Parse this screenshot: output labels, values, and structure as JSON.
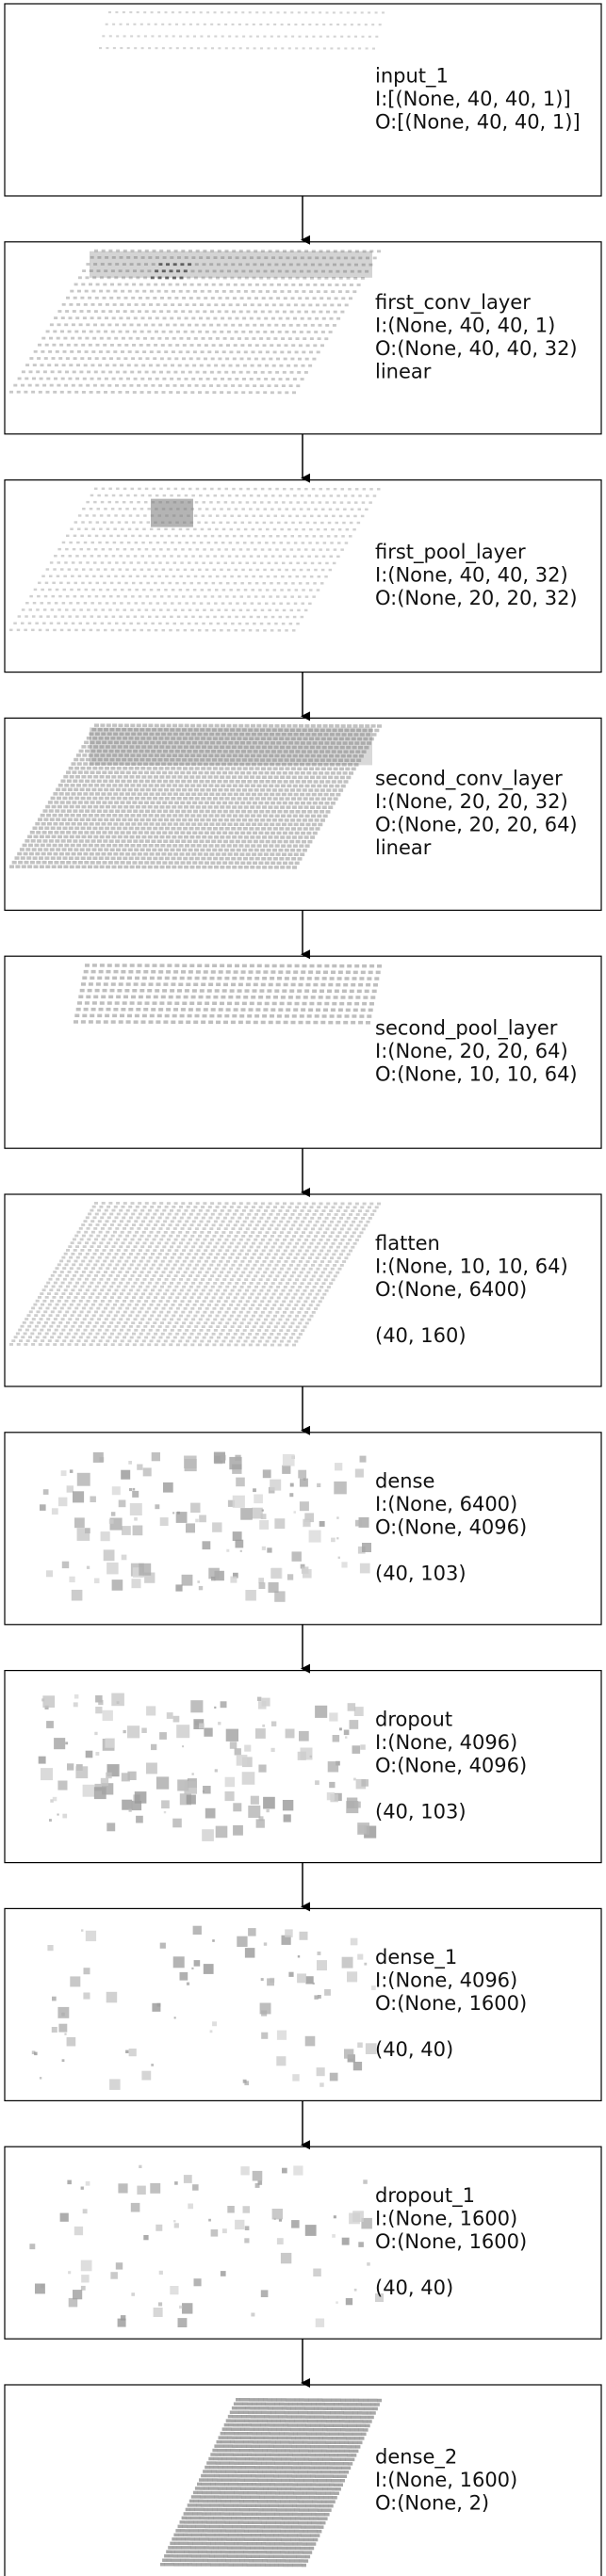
{
  "layers": [
    {
      "name": "input_1",
      "input": "I:[(None, 40, 40, 1)]",
      "output": "O:[(None, 40, 40, 1)]",
      "extra": "",
      "viz": "grid-sparse"
    },
    {
      "name": "first_conv_layer",
      "input": "I:(None, 40, 40, 1)",
      "output": "O:(None, 40, 40, 32)",
      "extra": "linear",
      "viz": "grid-conv"
    },
    {
      "name": "first_pool_layer",
      "input": "I:(None, 40, 40, 32)",
      "output": "O:(None, 20, 20, 32)",
      "extra": "",
      "viz": "grid-pool"
    },
    {
      "name": "second_conv_layer",
      "input": "I:(None, 20, 20, 32)",
      "output": "O:(None, 20, 20, 64)",
      "extra": "linear",
      "viz": "grid-dense"
    },
    {
      "name": "second_pool_layer",
      "input": "I:(None, 20, 20, 64)",
      "output": "O:(None, 10, 10, 64)",
      "extra": "",
      "viz": "grid-strip"
    },
    {
      "name": "flatten",
      "input": "I:(None, 10, 10, 64)",
      "output": "O:(None, 6400)",
      "extra": "(40, 160)",
      "viz": "grid-lines"
    },
    {
      "name": "dense",
      "input": "I:(None, 6400)",
      "output": "O:(None, 4096)",
      "extra": "(40, 103)",
      "viz": "scatter-a"
    },
    {
      "name": "dropout",
      "input": "I:(None, 4096)",
      "output": "O:(None, 4096)",
      "extra": "(40, 103)",
      "viz": "scatter-a"
    },
    {
      "name": "dense_1",
      "input": "I:(None, 4096)",
      "output": "O:(None, 1600)",
      "extra": "(40, 40)",
      "viz": "scatter-b"
    },
    {
      "name": "dropout_1",
      "input": "I:(None, 1600)",
      "output": "O:(None, 1600)",
      "extra": "(40, 40)",
      "viz": "scatter-b"
    },
    {
      "name": "dense_2",
      "input": "I:(None, 1600)",
      "output": "O:(None, 2)",
      "extra": "",
      "viz": "block"
    }
  ]
}
